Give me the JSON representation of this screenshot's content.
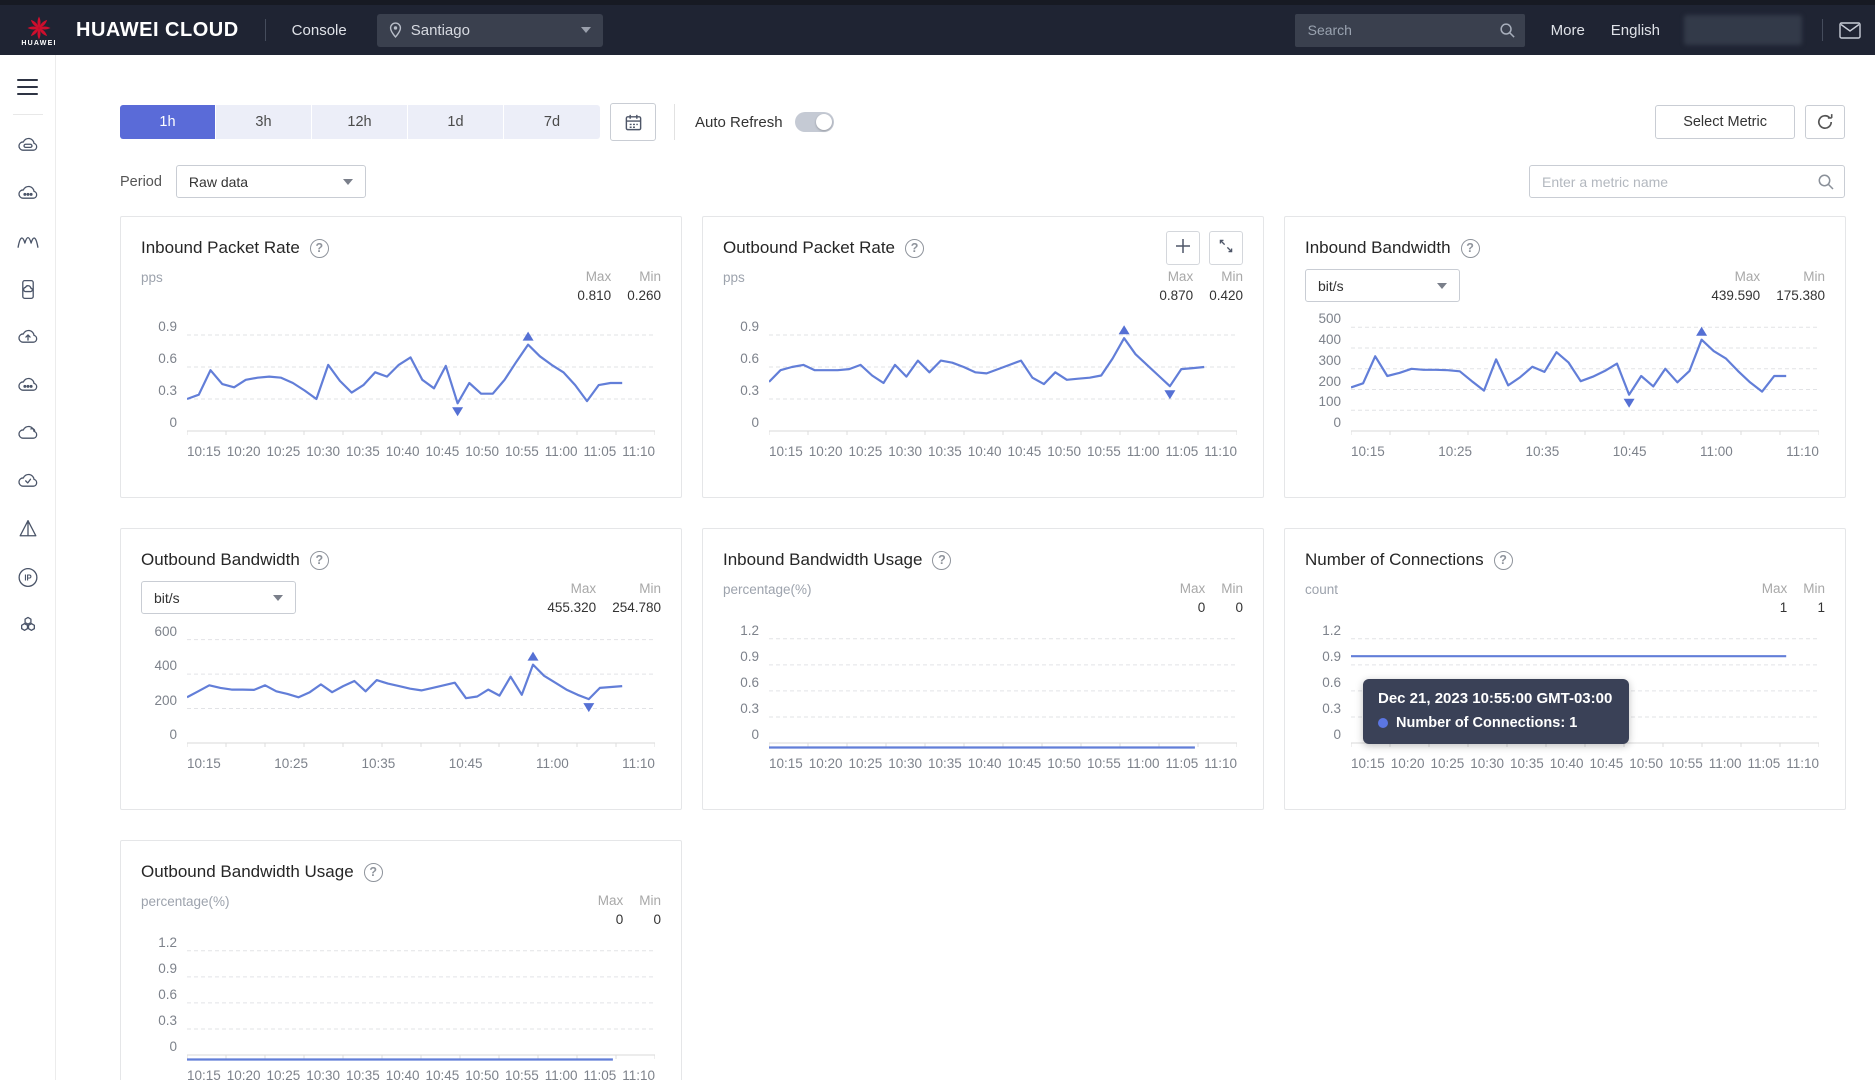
{
  "topbar": {
    "logo_text": "HUAWEI",
    "brand": "HUAWEI CLOUD",
    "console_label": "Console",
    "region": "Santiago",
    "search_placeholder": "Search",
    "more_label": "More",
    "language_label": "English"
  },
  "sidebar": {
    "icons": [
      "cloud-server-icon",
      "cloud-ellipsis-icon",
      "waves-icon",
      "device-cloud-icon",
      "cloud-upload-icon",
      "cloud-ellipsis-2-icon",
      "cloud-icon",
      "cloud-check-icon",
      "prism-icon",
      "ip-icon",
      "cluster-icon"
    ]
  },
  "toolbar": {
    "time_ranges": [
      "1h",
      "3h",
      "12h",
      "1d",
      "7d"
    ],
    "active_time_range": "1h",
    "auto_refresh_label": "Auto Refresh",
    "auto_refresh_on": false,
    "select_metric_label": "Select Metric",
    "period_label": "Period",
    "period_value": "Raw data",
    "metric_search_placeholder": "Enter a metric name"
  },
  "chart_labels": {
    "max": "Max",
    "min": "Min",
    "help_glyph": "?"
  },
  "tooltip": {
    "timestamp": "Dec 21, 2023 10:55:00 GMT-03:00",
    "series_label": "Number of Connections: 1"
  },
  "colors": {
    "accent": "#5a6bd8",
    "line": "#627ed8",
    "marker": "#5570d4",
    "grid": "#e2e3e6",
    "baseline": "#d9d9d9",
    "topbar_bg": "#1f2433",
    "tooltip_bg": "#3a4157",
    "logo_red": "#ce0e2d"
  },
  "chart_data": [
    {
      "type": "line",
      "title": "Inbound Packet Rate",
      "unit": "pps",
      "unit_control": "label",
      "max": "0.810",
      "min": "0.260",
      "yticks": [
        0.9,
        0.6,
        0.3,
        0
      ],
      "ylim": [
        0,
        1.05
      ],
      "xticks": [
        "10:15",
        "10:20",
        "10:25",
        "10:30",
        "10:35",
        "10:40",
        "10:45",
        "10:50",
        "10:55",
        "11:00",
        "11:05",
        "11:10"
      ],
      "values": [
        0.3,
        0.34,
        0.57,
        0.44,
        0.41,
        0.48,
        0.5,
        0.51,
        0.5,
        0.45,
        0.38,
        0.3,
        0.62,
        0.47,
        0.36,
        0.43,
        0.55,
        0.51,
        0.62,
        0.69,
        0.48,
        0.4,
        0.61,
        0.26,
        0.45,
        0.35,
        0.35,
        0.48,
        0.65,
        0.81,
        0.7,
        0.62,
        0.55,
        0.43,
        0.28,
        0.43,
        0.45,
        0.45
      ],
      "max_index": 29,
      "min_index": 23,
      "span": 0.93,
      "zoom_buttons": false,
      "tooltip": false
    },
    {
      "type": "line",
      "title": "Outbound Packet Rate",
      "unit": "pps",
      "unit_control": "label",
      "max": "0.870",
      "min": "0.420",
      "yticks": [
        0.9,
        0.6,
        0.3,
        0
      ],
      "ylim": [
        0,
        1.05
      ],
      "xticks": [
        "10:15",
        "10:20",
        "10:25",
        "10:30",
        "10:35",
        "10:40",
        "10:45",
        "10:50",
        "10:55",
        "11:00",
        "11:05",
        "11:10"
      ],
      "values": [
        0.46,
        0.57,
        0.6,
        0.62,
        0.57,
        0.57,
        0.57,
        0.58,
        0.62,
        0.52,
        0.45,
        0.62,
        0.51,
        0.66,
        0.55,
        0.66,
        0.64,
        0.6,
        0.55,
        0.54,
        0.58,
        0.62,
        0.66,
        0.5,
        0.44,
        0.55,
        0.48,
        0.49,
        0.5,
        0.52,
        0.68,
        0.87,
        0.72,
        0.62,
        0.52,
        0.42,
        0.58,
        0.59,
        0.6
      ],
      "max_index": 31,
      "min_index": 35,
      "span": 0.93,
      "zoom_buttons": true,
      "tooltip": false
    },
    {
      "type": "line",
      "title": "Inbound Bandwidth",
      "unit": "bit/s",
      "unit_control": "dropdown",
      "max": "439.590",
      "min": "175.380",
      "yticks": [
        500,
        400,
        300,
        200,
        100,
        0
      ],
      "ylim": [
        0,
        540
      ],
      "xticks": [
        "10:15",
        "10:25",
        "10:35",
        "10:45",
        "11:00",
        "11:10"
      ],
      "values": [
        210,
        230,
        360,
        265,
        280,
        300,
        295,
        295,
        293,
        288,
        240,
        195,
        345,
        220,
        260,
        310,
        285,
        380,
        330,
        240,
        262,
        290,
        325,
        175,
        265,
        215,
        300,
        235,
        290,
        440,
        385,
        350,
        290,
        235,
        190,
        265,
        265
      ],
      "max_index": 29,
      "min_index": 23,
      "span": 0.93,
      "zoom_buttons": false,
      "tooltip": false
    },
    {
      "type": "line",
      "title": "Outbound Bandwidth",
      "unit": "bit/s",
      "unit_control": "dropdown",
      "max": "455.320",
      "min": "254.780",
      "yticks": [
        600,
        400,
        200,
        0
      ],
      "ylim": [
        0,
        650
      ],
      "xticks": [
        "10:15",
        "10:25",
        "10:35",
        "10:45",
        "11:00",
        "11:10"
      ],
      "values": [
        265,
        300,
        335,
        320,
        310,
        310,
        308,
        335,
        300,
        285,
        265,
        295,
        340,
        295,
        330,
        360,
        300,
        365,
        345,
        330,
        315,
        305,
        320,
        335,
        350,
        260,
        270,
        310,
        275,
        385,
        280,
        455,
        390,
        350,
        310,
        280,
        255,
        320,
        325,
        330
      ],
      "max_index": 31,
      "min_index": 36,
      "span": 0.93,
      "zoom_buttons": false,
      "tooltip": false
    },
    {
      "type": "line",
      "title": "Inbound Bandwidth Usage",
      "unit": "percentage(%)",
      "unit_control": "label",
      "max": "0",
      "min": "0",
      "yticks": [
        1.2,
        0.9,
        0.6,
        0.3,
        0
      ],
      "ylim": [
        0,
        1.29
      ],
      "xticks": [
        "10:15",
        "10:20",
        "10:25",
        "10:30",
        "10:35",
        "10:40",
        "10:45",
        "10:50",
        "10:55",
        "11:00",
        "11:05",
        "11:10"
      ],
      "values": [
        0,
        0,
        0,
        0,
        0,
        0,
        0,
        0,
        0,
        0,
        0,
        0
      ],
      "max_index": null,
      "min_index": null,
      "span": 0.91,
      "zoom_buttons": false,
      "tooltip": false
    },
    {
      "type": "line",
      "title": "Number of Connections",
      "unit": "count",
      "unit_control": "label",
      "max": "1",
      "min": "1",
      "yticks": [
        1.2,
        0.9,
        0.6,
        0.3,
        0
      ],
      "ylim": [
        0,
        1.29
      ],
      "xticks": [
        "10:15",
        "10:20",
        "10:25",
        "10:30",
        "10:35",
        "10:40",
        "10:45",
        "10:50",
        "10:55",
        "11:00",
        "11:05",
        "11:10"
      ],
      "values": [
        1,
        1,
        1,
        1,
        1,
        1,
        1,
        1,
        1,
        1,
        1,
        1
      ],
      "max_index": null,
      "min_index": null,
      "span": 0.93,
      "zoom_buttons": false,
      "tooltip": true
    },
    {
      "type": "line",
      "title": "Outbound Bandwidth Usage",
      "unit": "percentage(%)",
      "unit_control": "label",
      "max": "0",
      "min": "0",
      "yticks": [
        1.2,
        0.9,
        0.6,
        0.3,
        0
      ],
      "ylim": [
        0,
        1.29
      ],
      "xticks": [
        "10:15",
        "10:20",
        "10:25",
        "10:30",
        "10:35",
        "10:40",
        "10:45",
        "10:50",
        "10:55",
        "11:00",
        "11:05",
        "11:10"
      ],
      "values": [
        0,
        0,
        0,
        0,
        0,
        0,
        0,
        0,
        0,
        0,
        0,
        0
      ],
      "max_index": null,
      "min_index": null,
      "span": 0.91,
      "zoom_buttons": false,
      "tooltip": false
    }
  ]
}
